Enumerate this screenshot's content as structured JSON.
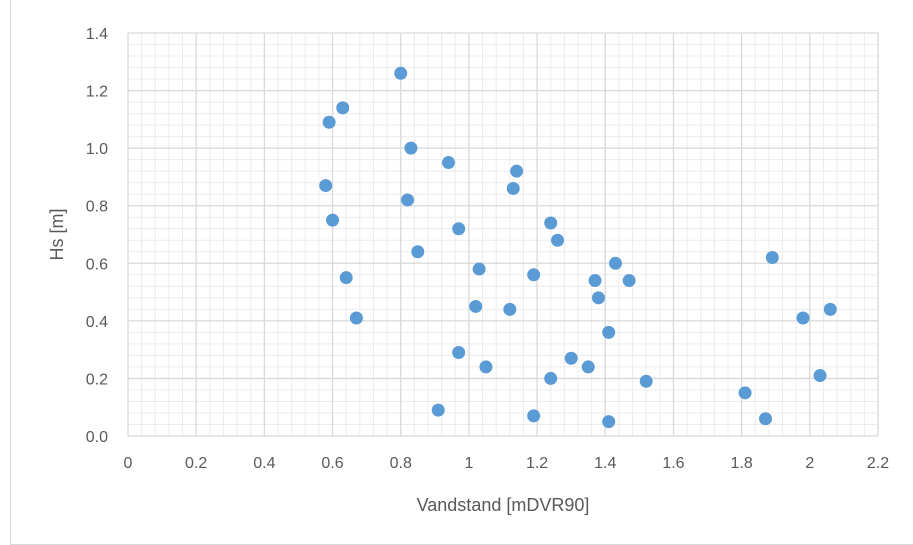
{
  "chart_data": {
    "type": "scatter",
    "title": "",
    "xlabel": "Vandstand [mDVR90]",
    "ylabel": "Hs [m]",
    "xlim": [
      0,
      2.2
    ],
    "ylim": [
      0,
      1.4
    ],
    "x_major_step": 0.2,
    "y_major_step": 0.2,
    "x_ticks": [
      "0",
      "0.2",
      "0.4",
      "0.6",
      "0.8",
      "1",
      "1.2",
      "1.4",
      "1.6",
      "1.8",
      "2",
      "2.2"
    ],
    "y_ticks": [
      "0.0",
      "0.2",
      "0.4",
      "0.6",
      "0.8",
      "1.0",
      "1.2",
      "1.4"
    ],
    "grid": true,
    "minor_grid": true,
    "legend": "none",
    "marker_color": "#5b9bd5",
    "series": [
      {
        "points": [
          [
            0.8,
            1.26
          ],
          [
            0.63,
            1.14
          ],
          [
            0.59,
            1.09
          ],
          [
            0.83,
            1.0
          ],
          [
            0.94,
            0.95
          ],
          [
            1.14,
            0.92
          ],
          [
            0.58,
            0.87
          ],
          [
            1.13,
            0.86
          ],
          [
            0.82,
            0.82
          ],
          [
            0.6,
            0.75
          ],
          [
            0.97,
            0.72
          ],
          [
            1.24,
            0.74
          ],
          [
            1.26,
            0.68
          ],
          [
            0.85,
            0.64
          ],
          [
            1.89,
            0.62
          ],
          [
            1.43,
            0.6
          ],
          [
            1.03,
            0.58
          ],
          [
            1.19,
            0.56
          ],
          [
            0.64,
            0.55
          ],
          [
            1.37,
            0.54
          ],
          [
            1.47,
            0.54
          ],
          [
            1.38,
            0.48
          ],
          [
            1.02,
            0.45
          ],
          [
            1.12,
            0.44
          ],
          [
            2.06,
            0.44
          ],
          [
            0.67,
            0.41
          ],
          [
            1.98,
            0.41
          ],
          [
            1.41,
            0.36
          ],
          [
            0.97,
            0.29
          ],
          [
            1.3,
            0.27
          ],
          [
            1.05,
            0.24
          ],
          [
            1.35,
            0.24
          ],
          [
            2.03,
            0.21
          ],
          [
            1.24,
            0.2
          ],
          [
            1.52,
            0.19
          ],
          [
            1.81,
            0.15
          ],
          [
            0.91,
            0.09
          ],
          [
            1.19,
            0.07
          ],
          [
            1.87,
            0.06
          ],
          [
            1.41,
            0.05
          ]
        ]
      }
    ]
  }
}
